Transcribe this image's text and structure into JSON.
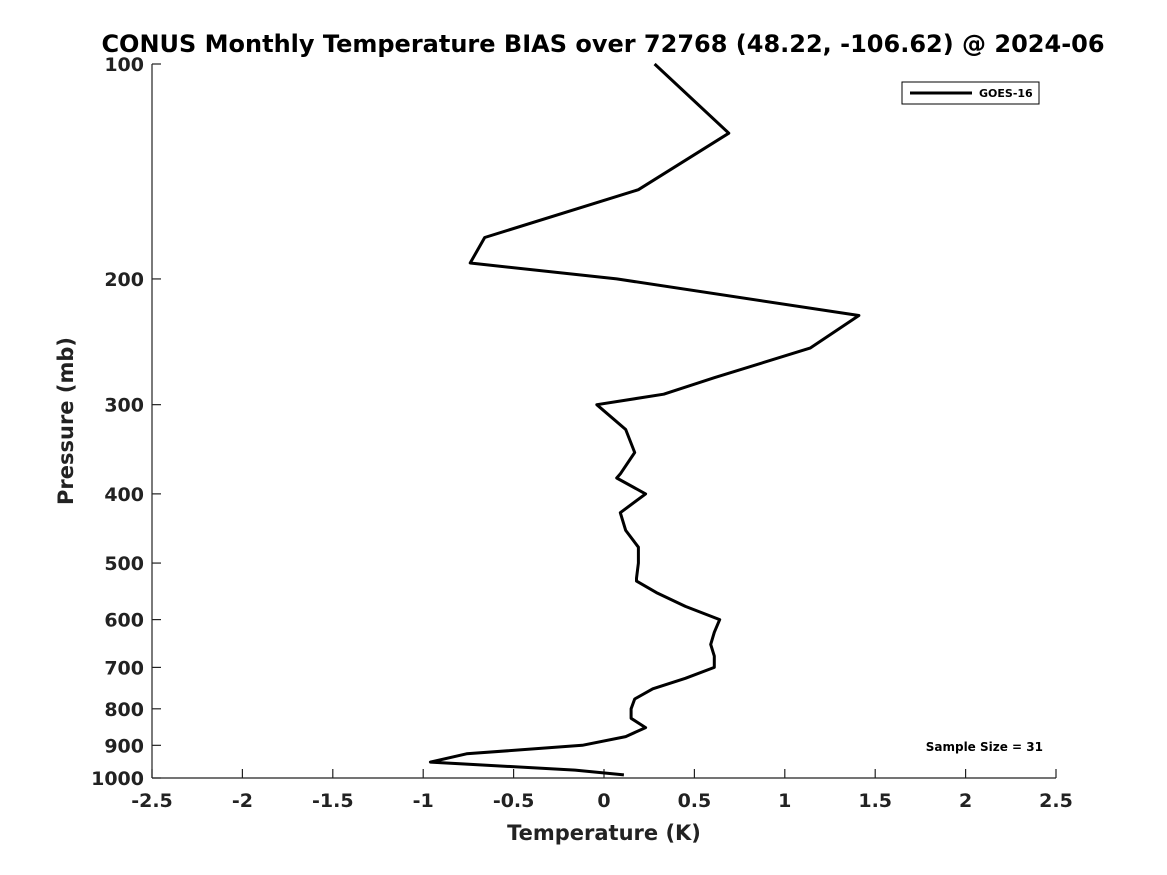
{
  "chart_data": {
    "type": "line",
    "title": "CONUS Monthly Temperature BIAS over 72768 (48.22, -106.62) @ 2024-06",
    "xlabel": "Temperature (K)",
    "ylabel": "Pressure (mb)",
    "xlim": [
      -2.5,
      2.5
    ],
    "ylim": [
      1000,
      100
    ],
    "y_scale": "log",
    "grid": false,
    "legend_position": "top-right",
    "x_ticks": [
      "-2.5",
      "-2",
      "-1.5",
      "-1",
      "-0.5",
      "0",
      "0.5",
      "1",
      "1.5",
      "2",
      "2.5"
    ],
    "x_tick_values": [
      -2.5,
      -2,
      -1.5,
      -1,
      -0.5,
      0,
      0.5,
      1,
      1.5,
      2,
      2.5
    ],
    "y_ticks": [
      "100",
      "200",
      "300",
      "400",
      "500",
      "600",
      "700",
      "800",
      "900",
      "1000"
    ],
    "y_tick_values": [
      100,
      200,
      300,
      400,
      500,
      600,
      700,
      800,
      900,
      1000
    ],
    "series": [
      {
        "name": "GOES-16",
        "color": "#000000",
        "points": [
          [
            0.28,
            100
          ],
          [
            0.69,
            125
          ],
          [
            0.19,
            150
          ],
          [
            -0.66,
            175
          ],
          [
            -0.74,
            190
          ],
          [
            0.07,
            200
          ],
          [
            1.41,
            225
          ],
          [
            1.14,
            250
          ],
          [
            0.61,
            275
          ],
          [
            0.33,
            290
          ],
          [
            -0.04,
            300
          ],
          [
            0.12,
            325
          ],
          [
            0.17,
            350
          ],
          [
            0.09,
            375
          ],
          [
            0.07,
            380
          ],
          [
            0.23,
            400
          ],
          [
            0.09,
            425
          ],
          [
            0.12,
            450
          ],
          [
            0.19,
            475
          ],
          [
            0.19,
            500
          ],
          [
            0.18,
            525
          ],
          [
            0.18,
            530
          ],
          [
            0.29,
            550
          ],
          [
            0.45,
            575
          ],
          [
            0.64,
            600
          ],
          [
            0.61,
            625
          ],
          [
            0.59,
            650
          ],
          [
            0.61,
            675
          ],
          [
            0.61,
            700
          ],
          [
            0.45,
            725
          ],
          [
            0.27,
            750
          ],
          [
            0.17,
            775
          ],
          [
            0.15,
            800
          ],
          [
            0.15,
            825
          ],
          [
            0.23,
            850
          ],
          [
            0.12,
            875
          ],
          [
            -0.12,
            900
          ],
          [
            -0.76,
            925
          ],
          [
            -0.96,
            950
          ],
          [
            -0.16,
            975
          ],
          [
            0.11,
            990
          ]
        ]
      }
    ],
    "annotation": "Sample Size = 31"
  }
}
